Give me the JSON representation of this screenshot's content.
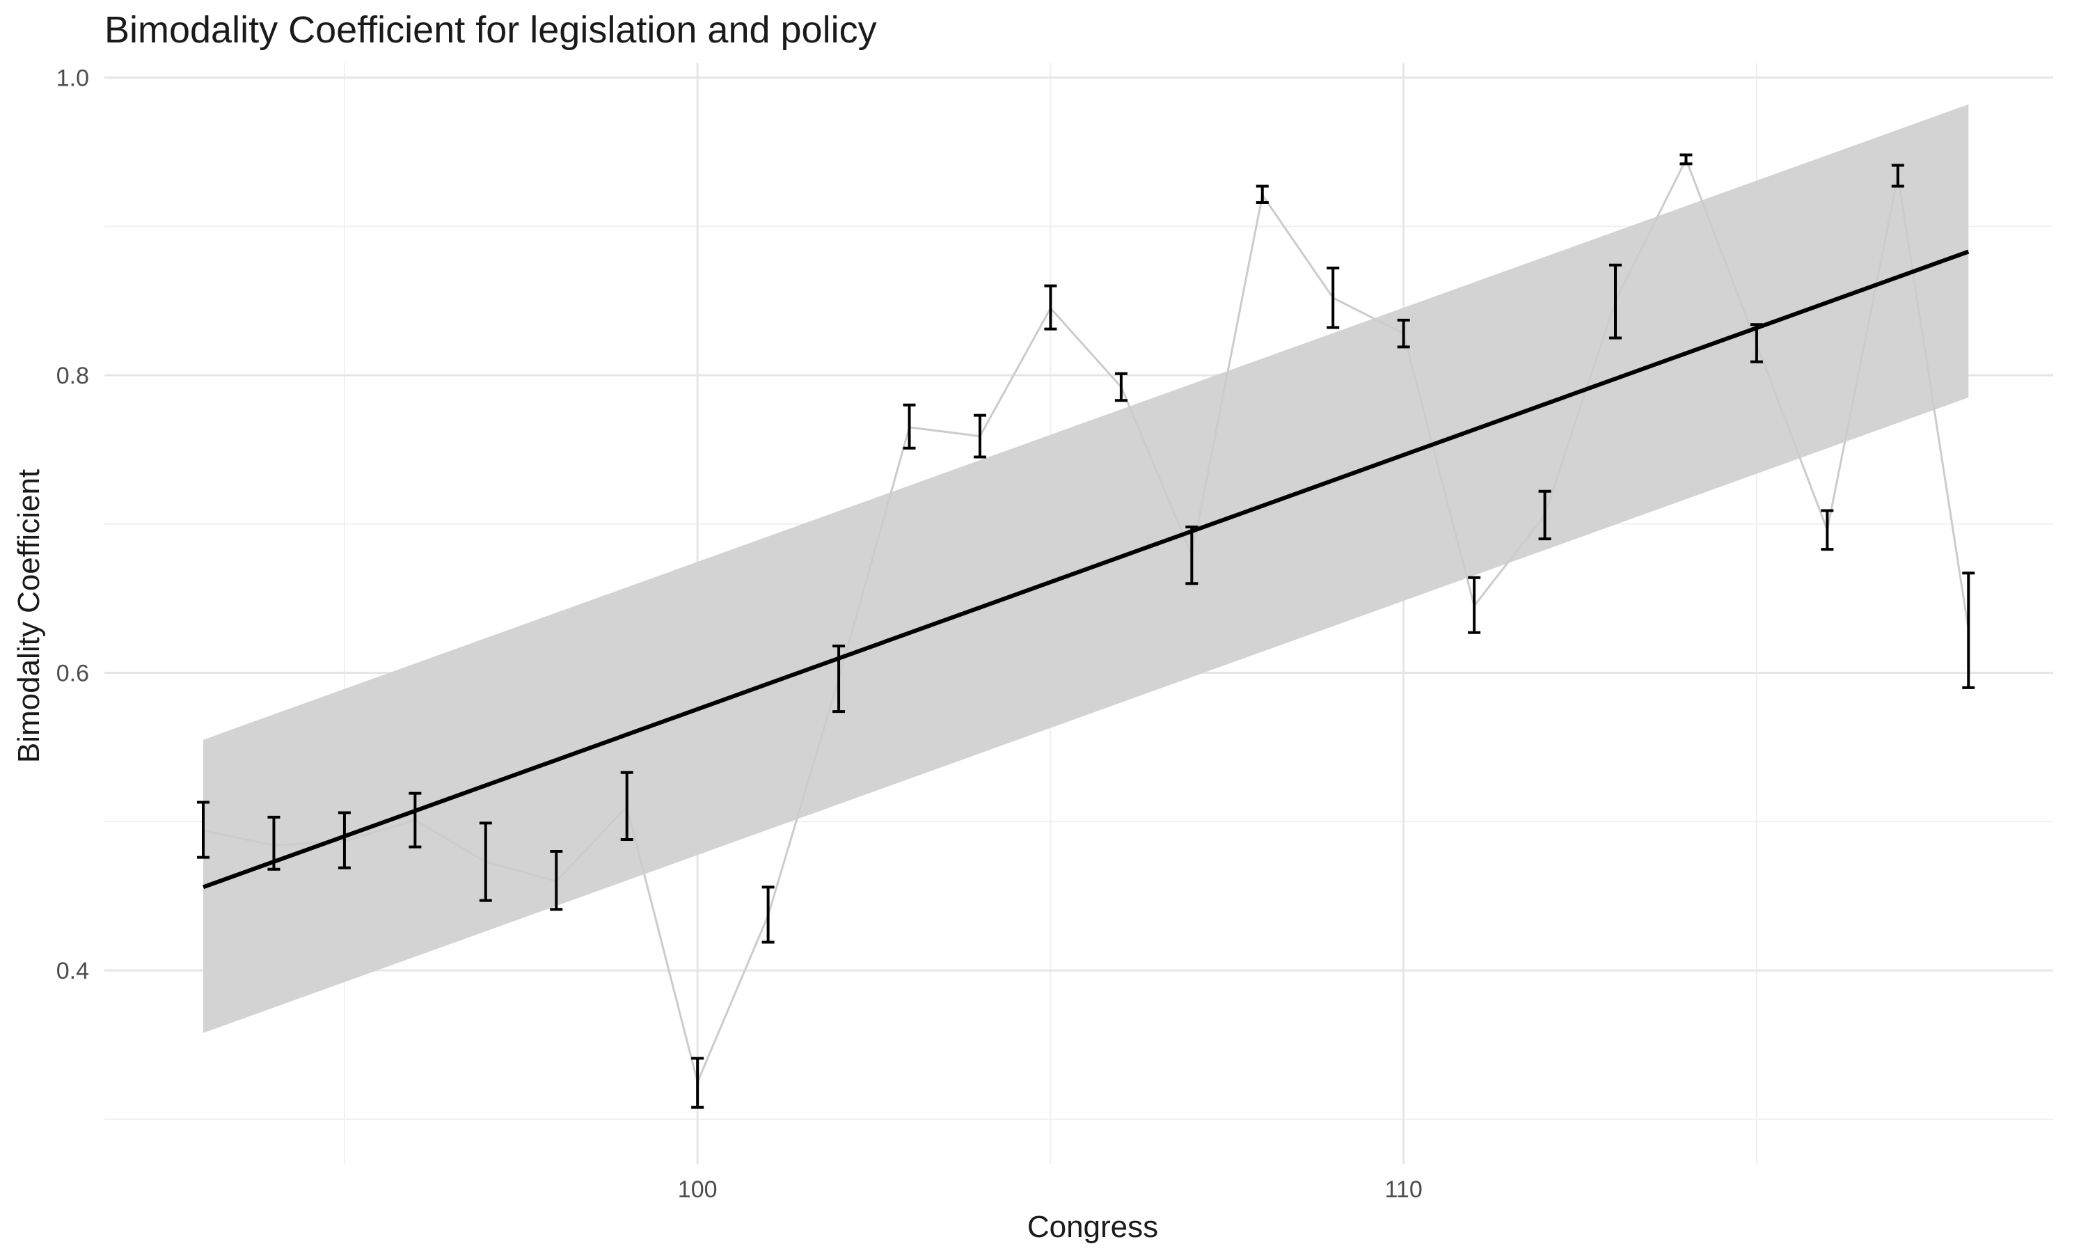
{
  "chart_data": {
    "type": "line",
    "title": "Bimodality Coefficient for legislation and policy",
    "xlabel": "Congress",
    "ylabel": "Bimodality Coefficient",
    "xlim": [
      91.6,
      119.2
    ],
    "ylim": [
      0.27,
      1.01
    ],
    "x_ticks": [
      100,
      110
    ],
    "x_tick_labels": [
      "100",
      "110"
    ],
    "x_minor_gridlines": [
      95,
      105,
      115
    ],
    "y_ticks": [
      0.4,
      0.6,
      0.8,
      1.0
    ],
    "y_tick_labels": [
      "0.4",
      "0.6",
      "0.8",
      "1.0"
    ],
    "y_minor_gridlines": [
      0.3,
      0.5,
      0.7,
      0.9
    ],
    "grid": true,
    "legend": "none",
    "series": [
      {
        "style": "line-with-errorbars",
        "color": "#cccccc",
        "errorbar_color": "#000000",
        "points": [
          {
            "x": 93,
            "y": 0.494,
            "lo": 0.476,
            "hi": 0.513
          },
          {
            "x": 94,
            "y": 0.484,
            "lo": 0.468,
            "hi": 0.503
          },
          {
            "x": 95,
            "y": 0.487,
            "lo": 0.469,
            "hi": 0.506
          },
          {
            "x": 96,
            "y": 0.501,
            "lo": 0.483,
            "hi": 0.519
          },
          {
            "x": 97,
            "y": 0.473,
            "lo": 0.447,
            "hi": 0.499
          },
          {
            "x": 98,
            "y": 0.46,
            "lo": 0.441,
            "hi": 0.48
          },
          {
            "x": 99,
            "y": 0.51,
            "lo": 0.488,
            "hi": 0.533
          },
          {
            "x": 100,
            "y": 0.325,
            "lo": 0.308,
            "hi": 0.341
          },
          {
            "x": 101,
            "y": 0.437,
            "lo": 0.419,
            "hi": 0.456
          },
          {
            "x": 102,
            "y": 0.596,
            "lo": 0.574,
            "hi": 0.618
          },
          {
            "x": 103,
            "y": 0.765,
            "lo": 0.751,
            "hi": 0.78
          },
          {
            "x": 104,
            "y": 0.759,
            "lo": 0.745,
            "hi": 0.773
          },
          {
            "x": 105,
            "y": 0.845,
            "lo": 0.831,
            "hi": 0.86
          },
          {
            "x": 106,
            "y": 0.792,
            "lo": 0.783,
            "hi": 0.801
          },
          {
            "x": 107,
            "y": 0.679,
            "lo": 0.66,
            "hi": 0.698
          },
          {
            "x": 108,
            "y": 0.921,
            "lo": 0.916,
            "hi": 0.927
          },
          {
            "x": 109,
            "y": 0.852,
            "lo": 0.832,
            "hi": 0.872
          },
          {
            "x": 110,
            "y": 0.828,
            "lo": 0.819,
            "hi": 0.837
          },
          {
            "x": 111,
            "y": 0.645,
            "lo": 0.627,
            "hi": 0.664
          },
          {
            "x": 112,
            "y": 0.706,
            "lo": 0.69,
            "hi": 0.722
          },
          {
            "x": 113,
            "y": 0.85,
            "lo": 0.825,
            "hi": 0.874
          },
          {
            "x": 114,
            "y": 0.945,
            "lo": 0.942,
            "hi": 0.948
          },
          {
            "x": 115,
            "y": 0.821,
            "lo": 0.809,
            "hi": 0.834
          },
          {
            "x": 116,
            "y": 0.696,
            "lo": 0.683,
            "hi": 0.709
          },
          {
            "x": 117,
            "y": 0.934,
            "lo": 0.927,
            "hi": 0.941
          },
          {
            "x": 118,
            "y": 0.629,
            "lo": 0.59,
            "hi": 0.667
          }
        ]
      },
      {
        "style": "linear-fit",
        "color": "#000000",
        "x": [
          93,
          118
        ],
        "y": [
          0.456,
          0.883
        ],
        "ci_lower": [
          0.358,
          0.785
        ],
        "ci_upper": [
          0.555,
          0.982
        ],
        "ci_color": "#d3d3d3"
      }
    ]
  }
}
